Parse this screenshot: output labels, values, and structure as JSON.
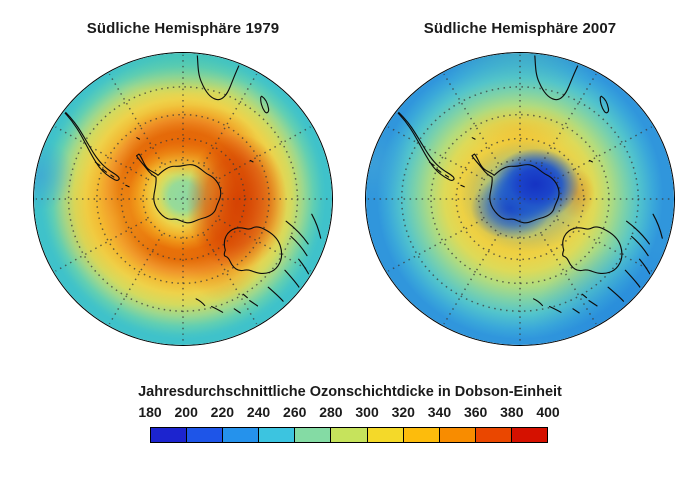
{
  "figure": {
    "background": "#ffffff"
  },
  "panels": [
    {
      "title": "Südliche Hemisphäre 1979"
    },
    {
      "title": "Südliche Hemisphäre 2007"
    }
  ],
  "colorbar": {
    "label": "Jahresdurchschnittliche Ozonschichtdicke in Dobson-Einheit",
    "ticks": [
      180,
      200,
      220,
      240,
      260,
      280,
      300,
      320,
      340,
      360,
      380,
      400
    ],
    "unit": "Dobson-Einheit",
    "segment_colors": [
      "#1c24cf",
      "#1e55e8",
      "#2592ec",
      "#3cc4e0",
      "#84dba4",
      "#c6e35c",
      "#f4d929",
      "#fdbc0c",
      "#f88c00",
      "#ea4700",
      "#d51100"
    ]
  },
  "chart_data": {
    "type": "heatmap",
    "title": "Jahresdurchschnittliche Ozonschichtdicke in Dobson-Einheit",
    "unit": "Dobson-Einheit (DU)",
    "colorbar": {
      "min": 180,
      "max": 400,
      "step": 20,
      "ticks": [
        180,
        200,
        220,
        240,
        260,
        280,
        300,
        320,
        340,
        360,
        380,
        400
      ],
      "colors": [
        "#1c24cf",
        "#1e55e8",
        "#2592ec",
        "#3cc4e0",
        "#84dba4",
        "#c6e35c",
        "#f4d929",
        "#fdbc0c",
        "#f88c00",
        "#ea4700",
        "#d51100"
      ],
      "orientation": "horizontal",
      "position": "bottom"
    },
    "panels": [
      {
        "title": "Südliche Hemisphäre 1979",
        "projection": "south-polar view, Antarctica centered, dotted graticule",
        "estimated_values_DU": {
          "pole_center_over_antarctica": 290,
          "subpolar_ring_maximum": 380,
          "ring_location": "ca. 50–65°S, strongest east/right of Antarctica",
          "midlatitudes": 330,
          "outer_edge_tropics": 260
        }
      },
      {
        "title": "Südliche Hemisphäre 2007",
        "projection": "south-polar view, Antarctica centered, dotted graticule",
        "estimated_values_DU": {
          "ozone_hole_minimum_over_antarctica": 190,
          "hole_fringe": 230,
          "subpolar_ring": 320,
          "orange_spot_east_of_hole": 340,
          "midlatitudes": 300,
          "outer_edge_tropics": 250
        }
      }
    ]
  }
}
